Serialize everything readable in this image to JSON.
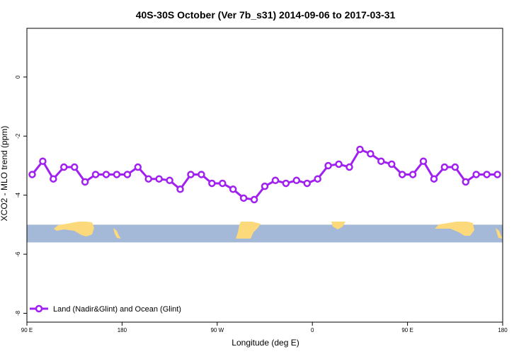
{
  "chart_data": {
    "type": "line",
    "title": "40S-30S October (Ver 7b_s31)   2014-09-06 to 2017-03-31",
    "xlabel": "Longitude (deg E)",
    "ylabel": "XCO2 - MLO trend (ppm)",
    "x_ticks": [
      {
        "value": 90,
        "label": "90 E"
      },
      {
        "value": 180,
        "label": "180"
      },
      {
        "value": 270,
        "label": "90 W"
      },
      {
        "value": 360,
        "label": "0"
      },
      {
        "value": 450,
        "label": "90 E"
      },
      {
        "value": 540,
        "label": "180"
      }
    ],
    "y_ticks": [
      {
        "value": 0,
        "label": "0"
      },
      {
        "value": -2,
        "label": "-2"
      },
      {
        "value": -4,
        "label": "-4"
      },
      {
        "value": -6,
        "label": "-6"
      },
      {
        "value": -8,
        "label": "-8"
      }
    ],
    "xlim": [
      90,
      540
    ],
    "ylim": [
      -8.3,
      1.65
    ],
    "colors": {
      "series": "#a020f0",
      "ocean": "#a4b9d8",
      "land": "#fcd97a"
    },
    "map_band": {
      "y_top": -5.0,
      "y_bottom": -5.6
    },
    "series": [
      {
        "name": "Land (Nadir&Glint) and Ocean (Glint)",
        "x": [
          95,
          105,
          115,
          125,
          135,
          145,
          155,
          165,
          175,
          185,
          195,
          205,
          215,
          225,
          235,
          245,
          255,
          265,
          275,
          285,
          295,
          305,
          315,
          325,
          335,
          345,
          355,
          365,
          375,
          385,
          395,
          405,
          415,
          425,
          435,
          445,
          455,
          465,
          475,
          485,
          495,
          505,
          515,
          525,
          535
        ],
        "y": [
          -3.3,
          -2.85,
          -3.45,
          -3.05,
          -3.05,
          -3.55,
          -3.3,
          -3.3,
          -3.3,
          -3.3,
          -3.05,
          -3.45,
          -3.45,
          -3.5,
          -3.8,
          -3.3,
          -3.3,
          -3.6,
          -3.6,
          -3.8,
          -4.1,
          -4.15,
          -3.7,
          -3.5,
          -3.6,
          -3.5,
          -3.6,
          -3.45,
          -3.0,
          -2.95,
          -3.05,
          -2.45,
          -2.6,
          -2.85,
          -2.95,
          -3.3,
          -3.3,
          -2.85,
          -3.45,
          -3.05,
          -3.05,
          -3.55,
          -3.3,
          -3.3,
          -3.3
        ]
      }
    ],
    "legend_position": "bottom-left",
    "grid": false
  }
}
